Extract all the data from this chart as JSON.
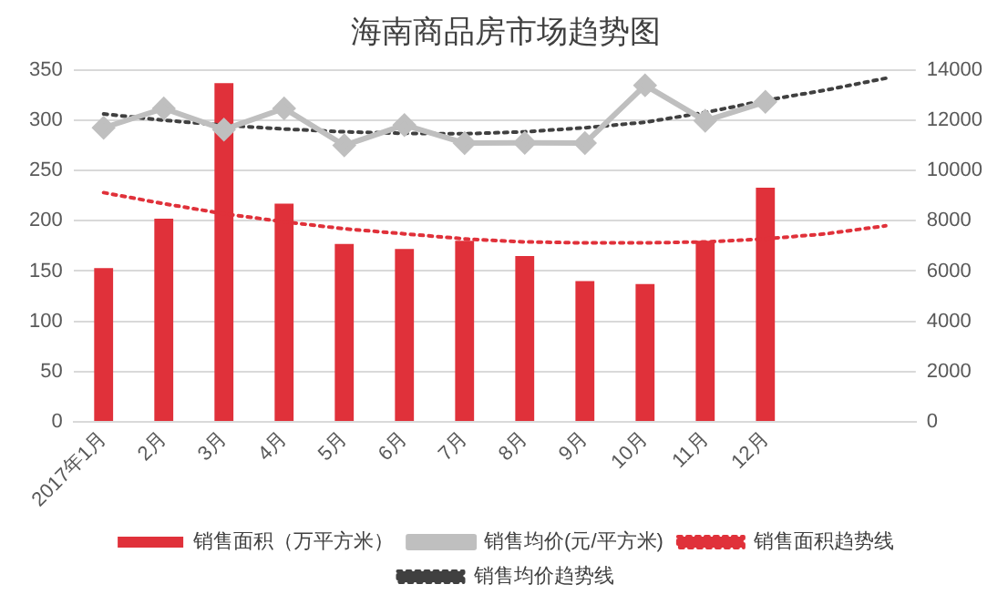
{
  "chart_data": {
    "type": "bar",
    "title": "海南商品房市场趋势图",
    "categories": [
      "2017年1月",
      "2月",
      "3月",
      "4月",
      "5月",
      "6月",
      "7月",
      "8月",
      "9月",
      "10月",
      "11月",
      "12月",
      null,
      null
    ],
    "series": [
      {
        "name": "销售面积（万平方米）",
        "color": "#e0313a",
        "values": [
          153,
          202,
          337,
          217,
          177,
          172,
          180,
          165,
          140,
          137,
          180,
          233,
          null,
          null
        ]
      },
      {
        "name": "销售均价(元/平方米)",
        "type": "line",
        "axis": "y2",
        "color": "#bfbfbf",
        "marker": "diamond",
        "line_style": "solid",
        "values": [
          11700,
          12470,
          11630,
          12470,
          11000,
          11810,
          11090,
          11100,
          11090,
          13390,
          11980,
          12730,
          null,
          null
        ]
      },
      {
        "name": "销售面积趋势线",
        "type": "line",
        "color": "#e0313a",
        "marker": "none",
        "line_style": "dotted",
        "values": [
          228,
          217,
          207,
          199,
          192,
          187,
          182,
          179,
          178,
          178,
          179,
          182,
          187,
          195
        ]
      },
      {
        "name": "销售均价趋势线",
        "type": "line",
        "axis": "y2",
        "color": "#404040",
        "marker": "none",
        "line_style": "dotted",
        "values": [
          12250,
          12000,
          11800,
          11650,
          11540,
          11480,
          11460,
          11540,
          11700,
          11920,
          12310,
          12790,
          13200,
          13670
        ]
      }
    ],
    "ylim": [
      0,
      350
    ],
    "yticks": [
      0,
      50,
      100,
      150,
      200,
      250,
      300,
      350
    ],
    "y2lim": [
      0,
      14000
    ],
    "y2ticks": [
      0,
      2000,
      4000,
      6000,
      8000,
      10000,
      12000,
      14000
    ],
    "grid": "y",
    "legend": "bottom"
  }
}
